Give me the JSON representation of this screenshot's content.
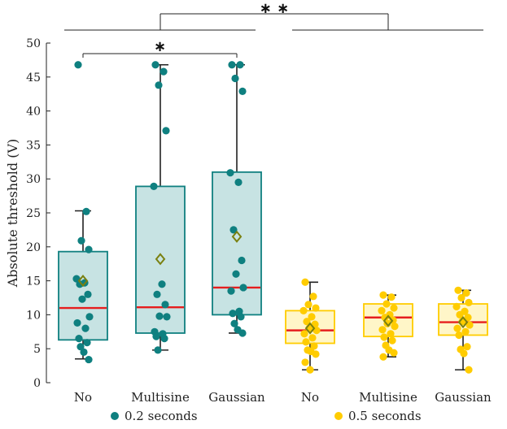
{
  "chart_data": {
    "type": "box",
    "ylabel": "Absolute threshold (V)",
    "ylim": [
      0,
      50
    ],
    "yticks": [
      0,
      5,
      10,
      15,
      20,
      25,
      30,
      35,
      40,
      45,
      50
    ],
    "categories": [
      "No",
      "Multisine",
      "Gaussian",
      "No",
      "Multisine",
      "Gaussian"
    ],
    "series": [
      {
        "name": "0.2 seconds",
        "color": "#0f8080",
        "box_fill": "#c7e3e3",
        "boxes": [
          {
            "category": "No",
            "whisker_low": 3.5,
            "q1": 6.3,
            "median": 11.0,
            "q3": 19.3,
            "whisker_high": 25.3,
            "mean": 15.0,
            "points": [
              46.8,
              25.2,
              20.9,
              19.6,
              15.3,
              14.7,
              14.5,
              13.0,
              12.3,
              9.7,
              8.8,
              8.0,
              6.5,
              5.9,
              5.3,
              4.5,
              3.4
            ]
          },
          {
            "category": "Multisine",
            "whisker_low": 4.8,
            "q1": 7.3,
            "median": 11.1,
            "q3": 28.9,
            "whisker_high": 46.8,
            "mean": 18.2,
            "points": [
              46.8,
              45.8,
              43.8,
              37.1,
              28.9,
              14.5,
              13.0,
              11.5,
              9.8,
              9.7,
              7.5,
              7.2,
              6.8,
              6.5,
              4.8
            ]
          },
          {
            "category": "Gaussian",
            "whisker_low": 7.3,
            "q1": 10.0,
            "median": 14.0,
            "q3": 31.0,
            "whisker_high": 46.8,
            "mean": 21.5,
            "points": [
              46.8,
              46.8,
              44.8,
              42.9,
              30.9,
              29.5,
              22.5,
              18.0,
              16.0,
              14.0,
              13.5,
              10.5,
              10.2,
              9.7,
              8.7,
              7.8,
              7.3
            ]
          }
        ]
      },
      {
        "name": "0.5 seconds",
        "color": "#ffcc00",
        "box_fill": "#fff6c8",
        "boxes": [
          {
            "category": "No",
            "whisker_low": 1.9,
            "q1": 5.8,
            "median": 7.7,
            "q3": 10.6,
            "whisker_high": 14.8,
            "mean": 8.0,
            "points": [
              14.8,
              12.7,
              11.5,
              11.0,
              10.6,
              9.7,
              9.0,
              8.6,
              8.0,
              7.7,
              7.2,
              6.6,
              6.0,
              5.4,
              4.8,
              4.6,
              4.2,
              3.0,
              1.9
            ]
          },
          {
            "category": "Multisine",
            "whisker_low": 3.8,
            "q1": 6.8,
            "median": 9.6,
            "q3": 11.6,
            "whisker_high": 12.9,
            "mean": 9.1,
            "points": [
              12.9,
              12.6,
              11.6,
              11.0,
              10.6,
              10.0,
              9.6,
              9.2,
              8.7,
              8.3,
              7.8,
              7.2,
              6.7,
              6.2,
              5.5,
              4.8,
              4.4,
              3.8
            ]
          },
          {
            "category": "Gaussian",
            "whisker_low": 1.9,
            "q1": 7.0,
            "median": 8.9,
            "q3": 11.6,
            "whisker_high": 13.6,
            "mean": 8.9,
            "points": [
              13.6,
              13.2,
              12.5,
              11.8,
              11.2,
              10.5,
              10.0,
              9.6,
              9.0,
              8.5,
              8.0,
              7.5,
              7.0,
              5.3,
              4.9,
              4.3,
              1.9
            ]
          }
        ]
      }
    ],
    "significance": [
      {
        "label": "∗",
        "from": "No (0.2 seconds)",
        "to": "Gaussian (0.2 seconds)"
      },
      {
        "label": "∗ ∗",
        "from": "0.2 seconds",
        "to": "0.5 seconds"
      }
    ],
    "legend_placement": "bottom",
    "grid": false
  }
}
